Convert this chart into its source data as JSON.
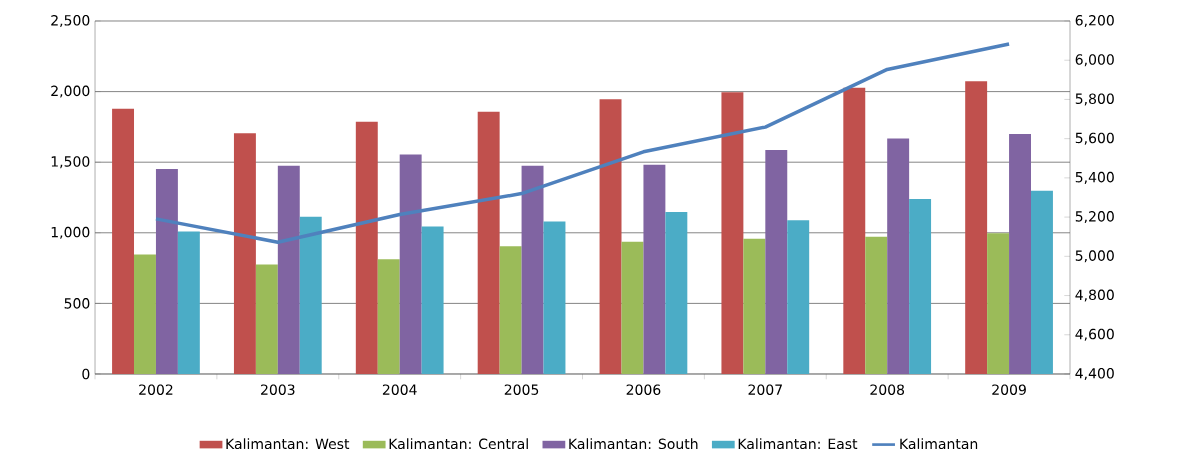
{
  "chart_data": {
    "type": "bar",
    "categories": [
      "2002",
      "2003",
      "2004",
      "2005",
      "2006",
      "2007",
      "2008",
      "2009"
    ],
    "series": [
      {
        "name": "Kalimantan: West",
        "color": "#c0504d",
        "values": [
          1878,
          1705,
          1786,
          1857,
          1946,
          1995,
          2027,
          2073
        ]
      },
      {
        "name": "Kalimantan: Central",
        "color": "#9bbb59",
        "values": [
          847,
          776,
          812,
          904,
          937,
          958,
          972,
          996
        ]
      },
      {
        "name": "Kalimantan: South",
        "color": "#8064a2",
        "values": [
          1452,
          1474,
          1555,
          1474,
          1482,
          1587,
          1668,
          1700
        ]
      },
      {
        "name": "Kalimantan: East",
        "color": "#4bacc6",
        "values": [
          1010,
          1113,
          1045,
          1080,
          1147,
          1088,
          1239,
          1298
        ]
      },
      {
        "name": "Kalimantan",
        "type": "line",
        "axis": "y2",
        "color": "#4f81bd",
        "values": [
          5191,
          5072,
          5213,
          5320,
          5533,
          5659,
          5953,
          6083
        ]
      }
    ],
    "ylim": [
      0,
      2500
    ],
    "yticks": [
      {
        "value": 0,
        "label": "0"
      },
      {
        "value": 500,
        "label": "500"
      },
      {
        "value": 1000,
        "label": "1,000"
      },
      {
        "value": 1500,
        "label": "1,500"
      },
      {
        "value": 2000,
        "label": "2,000"
      },
      {
        "value": 2500,
        "label": "2,500"
      }
    ],
    "y2lim": [
      4400,
      6200
    ],
    "y2ticks": [
      {
        "value": 4400,
        "label": "4,400"
      },
      {
        "value": 4600,
        "label": "4,600"
      },
      {
        "value": 4800,
        "label": "4,800"
      },
      {
        "value": 5000,
        "label": "5,000"
      },
      {
        "value": 5200,
        "label": "5,200"
      },
      {
        "value": 5400,
        "label": "5,400"
      },
      {
        "value": 5600,
        "label": "5,600"
      },
      {
        "value": 5800,
        "label": "5,800"
      },
      {
        "value": 6000,
        "label": "6,000"
      },
      {
        "value": 6200,
        "label": "6,200"
      }
    ],
    "grid": "y",
    "legend": "bottom"
  }
}
